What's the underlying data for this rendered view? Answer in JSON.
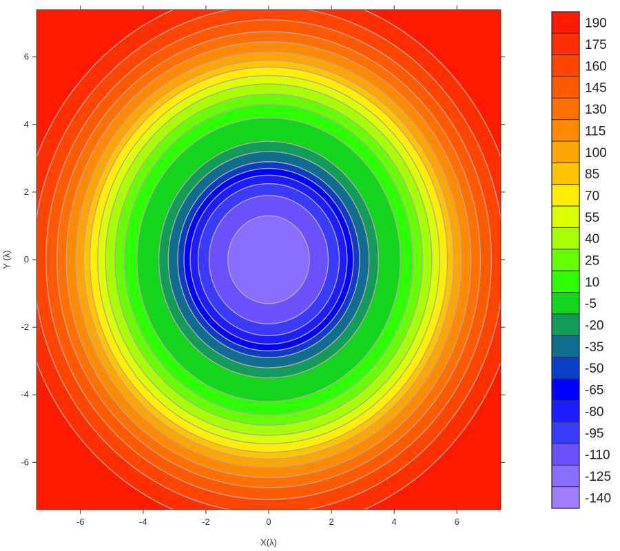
{
  "chart_data": {
    "type": "contour",
    "xlabel": "X(λ)",
    "ylabel": "Y (λ)",
    "xlim": [
      -7.4,
      7.4
    ],
    "ylim": [
      -7.4,
      7.4
    ],
    "xticks": [
      -6,
      -4,
      -2,
      0,
      2,
      4,
      6
    ],
    "yticks": [
      6,
      4,
      2,
      0,
      -2,
      -4,
      -6
    ],
    "grid": false,
    "legend": "colorbar-right",
    "colorbar": {
      "levels": [
        190,
        175,
        160,
        145,
        130,
        115,
        100,
        85,
        70,
        55,
        40,
        25,
        10,
        -5,
        -20,
        -35,
        -50,
        -65,
        -80,
        -95,
        -110,
        -125,
        -140
      ],
      "colors": [
        "#ff1a00",
        "#ff2f00",
        "#ff4500",
        "#ff5a00",
        "#ff7000",
        "#ff8a00",
        "#ffa500",
        "#ffc300",
        "#ffee00",
        "#d9ff00",
        "#a6ff00",
        "#66ff00",
        "#2dff00",
        "#14d41e",
        "#119c5a",
        "#0f6e8f",
        "#0a3ec6",
        "#0000ff",
        "#1d1dff",
        "#3a3aff",
        "#6a50ff",
        "#8a6cff",
        "#a07cff"
      ]
    },
    "contour_bands": [
      {
        "radius": 0.0,
        "level": -140
      },
      {
        "radius": 1.3,
        "level": -125
      },
      {
        "radius": 1.9,
        "level": -110
      },
      {
        "radius": 2.25,
        "level": -95
      },
      {
        "radius": 2.5,
        "level": -80
      },
      {
        "radius": 2.7,
        "level": -65
      },
      {
        "radius": 2.9,
        "level": -50
      },
      {
        "radius": 3.2,
        "level": -35
      },
      {
        "radius": 3.5,
        "level": -20
      },
      {
        "radius": 4.2,
        "level": -5
      },
      {
        "radius": 4.6,
        "level": 10
      },
      {
        "radius": 4.9,
        "level": 25
      },
      {
        "radius": 5.2,
        "level": 40
      },
      {
        "radius": 5.45,
        "level": 55
      },
      {
        "radius": 5.7,
        "level": 70
      },
      {
        "radius": 5.9,
        "level": 85
      },
      {
        "radius": 6.15,
        "level": 100
      },
      {
        "radius": 6.45,
        "level": 115
      },
      {
        "radius": 6.75,
        "level": 130
      },
      {
        "radius": 7.1,
        "level": 145
      },
      {
        "radius": 7.5,
        "level": 160
      },
      {
        "radius": 8.0,
        "level": 175
      }
    ],
    "background_level": 190
  }
}
